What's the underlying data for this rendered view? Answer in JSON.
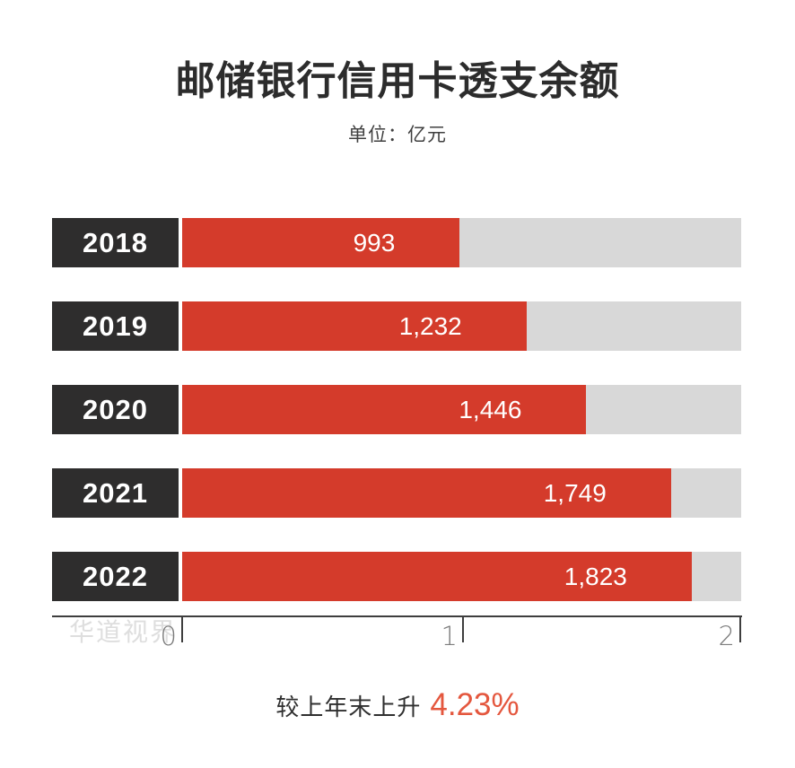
{
  "header": {
    "title": "邮储银行信用卡透支余额",
    "subtitle": "单位：亿元"
  },
  "chart_data": {
    "type": "bar",
    "orientation": "horizontal",
    "title": "邮储银行信用卡透支余额",
    "unit_note": "单位：亿元",
    "categories": [
      "2018",
      "2019",
      "2020",
      "2021",
      "2022"
    ],
    "values": [
      993,
      1232,
      1446,
      1749,
      1823
    ],
    "value_labels": [
      "993",
      "1,232",
      "1,446",
      "1,749",
      "1,823"
    ],
    "xlim": [
      0,
      2000
    ],
    "x_tick_values": [
      0,
      1000,
      2000
    ],
    "x_tick_labels": [
      "0",
      "1",
      "2"
    ],
    "grid": false,
    "legend": false,
    "colors": {
      "bar": "#d43b2b",
      "track": "#d8d8d8",
      "category_box": "#2e2d2d",
      "axis": "#3e3e3e"
    }
  },
  "footer": {
    "text": "较上年末上升",
    "value": "4.23%",
    "value_color": "#e4573e"
  },
  "watermark": "华道视界"
}
